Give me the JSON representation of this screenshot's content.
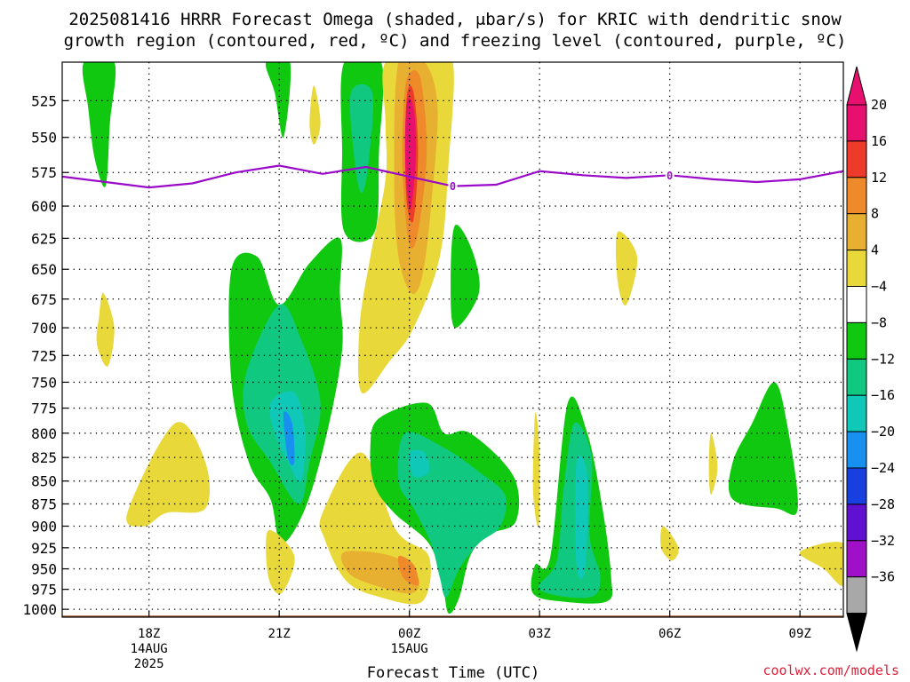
{
  "chart_data": {
    "type": "heatmap",
    "title_line1": "2025081416 HRRR Forecast Omega (shaded, μbar/s) for KRIC with dendritic snow",
    "title_line2": "growth region (contoured, red, ºC) and freezing level (contoured, purple, ºC)",
    "xlabel": "Forecast Time (UTC)",
    "credit": "coolwx.com/models",
    "x_range_hours": [
      -2,
      16
    ],
    "y_range_mb": [
      500,
      1010
    ],
    "y_scale": "pressure",
    "grid": true,
    "x_ticks": [
      {
        "hour": 0,
        "label": "18Z",
        "sub1": "14AUG",
        "sub2": "2025"
      },
      {
        "hour": 3,
        "label": "21Z",
        "sub1": "",
        "sub2": ""
      },
      {
        "hour": 6,
        "label": "00Z",
        "sub1": "15AUG",
        "sub2": ""
      },
      {
        "hour": 9,
        "label": "03Z",
        "sub1": "",
        "sub2": ""
      },
      {
        "hour": 12,
        "label": "06Z",
        "sub1": "",
        "sub2": ""
      },
      {
        "hour": 15,
        "label": "09Z",
        "sub1": "",
        "sub2": ""
      }
    ],
    "y_ticks": [
      525,
      550,
      575,
      600,
      625,
      650,
      675,
      700,
      725,
      750,
      775,
      800,
      825,
      850,
      875,
      900,
      925,
      950,
      975,
      1000
    ],
    "colorbar": {
      "labels": [
        "20",
        "16",
        "12",
        "8",
        "4",
        "−4",
        "−8",
        "−12",
        "−16",
        "−20",
        "−24",
        "−28",
        "−32",
        "−36"
      ],
      "bins": [
        {
          "lo": 20,
          "hi": 24,
          "color": "#e8106e"
        },
        {
          "lo": 16,
          "hi": 20,
          "color": "#ee3a2a"
        },
        {
          "lo": 12,
          "hi": 16,
          "color": "#ee8a2a"
        },
        {
          "lo": 8,
          "hi": 12,
          "color": "#e8b030"
        },
        {
          "lo": 4,
          "hi": 8,
          "color": "#e8d83a"
        },
        {
          "lo": -4,
          "hi": 4,
          "color": "#ffffff"
        },
        {
          "lo": -8,
          "hi": -4,
          "color": "#10c810"
        },
        {
          "lo": -12,
          "hi": -8,
          "color": "#10c880"
        },
        {
          "lo": -16,
          "hi": -12,
          "color": "#10c8b8"
        },
        {
          "lo": -20,
          "hi": -16,
          "color": "#1890f0"
        },
        {
          "lo": -24,
          "hi": -20,
          "color": "#1840e0"
        },
        {
          "lo": -28,
          "hi": -24,
          "color": "#6010d0"
        },
        {
          "lo": -32,
          "hi": -28,
          "color": "#a010c8"
        },
        {
          "lo": -36,
          "hi": -32,
          "color": "#a8a8a8"
        }
      ],
      "over_color": "#e8106e",
      "under_color": "#000000"
    },
    "freezing_level": {
      "label": "0",
      "label_hours": [
        7.0,
        12.0
      ],
      "points": [
        [
          -2,
          578
        ],
        [
          0,
          586
        ],
        [
          1,
          583
        ],
        [
          2,
          575
        ],
        [
          3,
          570
        ],
        [
          4,
          576
        ],
        [
          5,
          571
        ],
        [
          6,
          578
        ],
        [
          7,
          585
        ],
        [
          8,
          584
        ],
        [
          9,
          574
        ],
        [
          10,
          577
        ],
        [
          11,
          579
        ],
        [
          12,
          577
        ],
        [
          13,
          580
        ],
        [
          14,
          582
        ],
        [
          15,
          580
        ],
        [
          16,
          574
        ]
      ]
    },
    "omega_regions": [
      {
        "value": -6,
        "points": [
          [
            -1.5,
            500
          ],
          [
            -0.8,
            500
          ],
          [
            -0.9,
            540
          ],
          [
            -1.0,
            585
          ],
          [
            -1.25,
            565
          ],
          [
            -1.4,
            530
          ]
        ]
      },
      {
        "value": 5,
        "points": [
          [
            -1.05,
            670
          ],
          [
            -0.8,
            700
          ],
          [
            -0.95,
            735
          ],
          [
            -1.2,
            715
          ],
          [
            -1.15,
            690
          ]
        ]
      },
      {
        "value": -6,
        "points": [
          [
            2.7,
            500
          ],
          [
            3.25,
            500
          ],
          [
            3.1,
            550
          ],
          [
            2.9,
            520
          ]
        ]
      },
      {
        "value": 5,
        "points": [
          [
            3.8,
            515
          ],
          [
            3.95,
            540
          ],
          [
            3.8,
            555
          ],
          [
            3.7,
            540
          ]
        ]
      },
      {
        "value": -6,
        "points": [
          [
            4.5,
            500
          ],
          [
            5.35,
            500
          ],
          [
            5.3,
            560
          ],
          [
            5.2,
            620
          ],
          [
            4.5,
            620
          ],
          [
            4.45,
            560
          ]
        ]
      },
      {
        "value": -10,
        "points": [
          [
            4.65,
            520
          ],
          [
            5.15,
            520
          ],
          [
            5.05,
            570
          ],
          [
            4.9,
            590
          ],
          [
            4.75,
            570
          ]
        ]
      },
      {
        "value": 5,
        "points": [
          [
            5.45,
            500
          ],
          [
            6.4,
            500
          ],
          [
            7.0,
            500
          ],
          [
            6.9,
            570
          ],
          [
            6.7,
            640
          ],
          [
            6.1,
            700
          ],
          [
            5.55,
            730
          ],
          [
            4.9,
            760
          ],
          [
            4.85,
            700
          ],
          [
            5.1,
            640
          ],
          [
            5.45,
            580
          ],
          [
            5.45,
            540
          ]
        ]
      },
      {
        "value": 10,
        "points": [
          [
            5.75,
            500
          ],
          [
            6.35,
            500
          ],
          [
            6.65,
            530
          ],
          [
            6.5,
            600
          ],
          [
            6.3,
            655
          ],
          [
            6.05,
            670
          ],
          [
            5.75,
            640
          ],
          [
            5.65,
            580
          ]
        ]
      },
      {
        "value": 14,
        "points": [
          [
            5.95,
            510
          ],
          [
            6.25,
            510
          ],
          [
            6.4,
            560
          ],
          [
            6.2,
            620
          ],
          [
            6.0,
            630
          ],
          [
            5.85,
            580
          ],
          [
            5.85,
            540
          ]
        ]
      },
      {
        "value": 18,
        "points": [
          [
            5.95,
            520
          ],
          [
            6.1,
            520
          ],
          [
            6.2,
            560
          ],
          [
            6.1,
            610
          ],
          [
            5.95,
            600
          ],
          [
            5.9,
            560
          ]
        ]
      },
      {
        "value": 22,
        "points": [
          [
            5.95,
            525
          ],
          [
            6.1,
            530
          ],
          [
            6.15,
            560
          ],
          [
            6.05,
            600
          ],
          [
            5.95,
            590
          ],
          [
            5.9,
            555
          ]
        ]
      },
      {
        "value": -6,
        "points": [
          [
            4.4,
            625
          ],
          [
            3.7,
            645
          ],
          [
            3.0,
            680
          ],
          [
            2.5,
            640
          ],
          [
            1.9,
            650
          ],
          [
            1.9,
            750
          ],
          [
            2.3,
            830
          ],
          [
            2.8,
            870
          ],
          [
            3.05,
            920
          ],
          [
            3.6,
            880
          ],
          [
            4.1,
            800
          ],
          [
            4.45,
            720
          ],
          [
            4.4,
            670
          ]
        ]
      },
      {
        "value": -10,
        "points": [
          [
            2.25,
            740
          ],
          [
            3.0,
            680
          ],
          [
            3.5,
            710
          ],
          [
            3.95,
            770
          ],
          [
            3.7,
            830
          ],
          [
            3.45,
            875
          ],
          [
            2.8,
            830
          ],
          [
            2.25,
            790
          ]
        ]
      },
      {
        "value": -14,
        "points": [
          [
            2.8,
            770
          ],
          [
            3.35,
            760
          ],
          [
            3.6,
            800
          ],
          [
            3.5,
            850
          ],
          [
            3.2,
            830
          ],
          [
            2.9,
            800
          ]
        ]
      },
      {
        "value": -18,
        "points": [
          [
            3.1,
            780
          ],
          [
            3.3,
            790
          ],
          [
            3.35,
            830
          ],
          [
            3.2,
            825
          ]
        ]
      },
      {
        "value": -6,
        "points": [
          [
            7.05,
            615
          ],
          [
            7.45,
            635
          ],
          [
            7.6,
            670
          ],
          [
            7.05,
            700
          ],
          [
            6.95,
            660
          ]
        ]
      },
      {
        "value": 5,
        "points": [
          [
            10.8,
            620
          ],
          [
            11.25,
            640
          ],
          [
            11.0,
            680
          ],
          [
            10.8,
            660
          ]
        ]
      },
      {
        "value": 5,
        "points": [
          [
            -0.5,
            885
          ],
          [
            0.6,
            790
          ],
          [
            1.3,
            830
          ],
          [
            1.3,
            880
          ],
          [
            0.4,
            885
          ],
          [
            -0.1,
            900
          ]
        ]
      },
      {
        "value": 5,
        "points": [
          [
            2.75,
            905
          ],
          [
            3.35,
            935
          ],
          [
            3.05,
            980
          ],
          [
            2.75,
            960
          ]
        ]
      },
      {
        "value": 5,
        "points": [
          [
            4.0,
            885
          ],
          [
            4.9,
            820
          ],
          [
            5.7,
            905
          ],
          [
            6.45,
            935
          ],
          [
            6.3,
            990
          ],
          [
            5.35,
            985
          ],
          [
            4.55,
            965
          ],
          [
            4.05,
            915
          ]
        ]
      },
      {
        "value": 10,
        "points": [
          [
            4.5,
            930
          ],
          [
            5.6,
            935
          ],
          [
            6.2,
            960
          ],
          [
            6.05,
            980
          ],
          [
            5.2,
            970
          ],
          [
            4.6,
            955
          ]
        ]
      },
      {
        "value": 14,
        "points": [
          [
            5.75,
            935
          ],
          [
            6.1,
            945
          ],
          [
            6.2,
            970
          ],
          [
            5.85,
            960
          ]
        ]
      },
      {
        "value": -6,
        "points": [
          [
            5.3,
            785
          ],
          [
            6.4,
            770
          ],
          [
            6.8,
            800
          ],
          [
            7.4,
            800
          ],
          [
            8.4,
            845
          ],
          [
            8.45,
            895
          ],
          [
            7.8,
            910
          ],
          [
            7.4,
            935
          ],
          [
            7.15,
            985
          ],
          [
            6.9,
            1005
          ],
          [
            6.75,
            965
          ],
          [
            6.45,
            920
          ],
          [
            5.65,
            885
          ],
          [
            5.2,
            855
          ],
          [
            5.1,
            815
          ]
        ]
      },
      {
        "value": -10,
        "points": [
          [
            5.9,
            800
          ],
          [
            6.8,
            815
          ],
          [
            7.6,
            840
          ],
          [
            8.2,
            865
          ],
          [
            8.1,
            900
          ],
          [
            7.6,
            920
          ],
          [
            7.15,
            950
          ],
          [
            6.85,
            985
          ],
          [
            6.7,
            960
          ],
          [
            6.5,
            920
          ],
          [
            6.1,
            880
          ],
          [
            5.75,
            850
          ]
        ]
      },
      {
        "value": -14,
        "points": [
          [
            6.0,
            820
          ],
          [
            6.35,
            820
          ],
          [
            6.45,
            840
          ],
          [
            6.1,
            845
          ]
        ]
      },
      {
        "value": 5,
        "points": [
          [
            8.9,
            780
          ],
          [
            9.0,
            820
          ],
          [
            8.98,
            900
          ],
          [
            8.85,
            860
          ]
        ]
      },
      {
        "value": -6,
        "points": [
          [
            9.65,
            770
          ],
          [
            10.1,
            800
          ],
          [
            10.45,
            880
          ],
          [
            10.65,
            960
          ],
          [
            10.55,
            990
          ],
          [
            9.5,
            990
          ],
          [
            8.85,
            980
          ],
          [
            8.9,
            945
          ],
          [
            9.25,
            935
          ]
        ]
      },
      {
        "value": -10,
        "points": [
          [
            9.8,
            790
          ],
          [
            10.2,
            825
          ],
          [
            10.15,
            910
          ],
          [
            10.4,
            960
          ],
          [
            10.15,
            985
          ],
          [
            9.0,
            975
          ],
          [
            9.4,
            940
          ],
          [
            9.55,
            860
          ]
        ]
      },
      {
        "value": -14,
        "points": [
          [
            9.85,
            830
          ],
          [
            10.1,
            845
          ],
          [
            10.05,
            950
          ],
          [
            9.85,
            945
          ]
        ]
      },
      {
        "value": 5,
        "points": [
          [
            12.95,
            800
          ],
          [
            13.1,
            835
          ],
          [
            12.95,
            865
          ],
          [
            12.9,
            835
          ]
        ]
      },
      {
        "value": 5,
        "points": [
          [
            11.85,
            900
          ],
          [
            12.2,
            925
          ],
          [
            12.05,
            940
          ],
          [
            11.8,
            925
          ]
        ]
      },
      {
        "value": -6,
        "points": [
          [
            14.4,
            750
          ],
          [
            14.7,
            790
          ],
          [
            14.95,
            880
          ],
          [
            14.45,
            880
          ],
          [
            13.45,
            870
          ],
          [
            13.45,
            830
          ],
          [
            13.9,
            790
          ]
        ]
      },
      {
        "value": 5,
        "points": [
          [
            15.0,
            930
          ],
          [
            16.0,
            920
          ],
          [
            16.0,
            970
          ],
          [
            15.55,
            950
          ]
        ]
      }
    ],
    "ground_level_mb": 1008
  }
}
